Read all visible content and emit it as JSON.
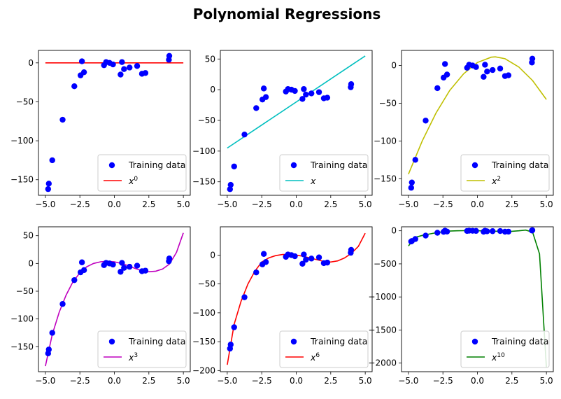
{
  "figure": {
    "title": "Polynomial Regressions"
  },
  "chart_data": [
    {
      "type": "scatter",
      "title": "",
      "xlabel": "",
      "ylabel": "",
      "xlim": [
        -5.5,
        5.5
      ],
      "ylim": [
        -170,
        16
      ],
      "xticks": [
        -5.0,
        -2.5,
        0.0,
        2.5,
        5.0
      ],
      "xtick_labels": [
        "−5.0",
        "−2.5",
        "0.0",
        "2.5",
        "5.0"
      ],
      "yticks": [
        -150,
        -100,
        -50,
        0
      ],
      "ytick_labels": [
        "−150",
        "−100",
        "−50",
        "0"
      ],
      "grid": false,
      "legend_position": "lower-right",
      "series": [
        {
          "name": "Training data",
          "kind": "scatter",
          "color": "#0000ff"
        },
        {
          "name": "x",
          "sup": "0",
          "kind": "line",
          "color": "#ff0000",
          "x": [
            -5,
            5
          ],
          "y": [
            0,
            0
          ]
        }
      ]
    },
    {
      "type": "scatter",
      "title": "",
      "xlabel": "",
      "ylabel": "",
      "xlim": [
        -5.5,
        5.5
      ],
      "ylim": [
        -172,
        64
      ],
      "xticks": [
        -5.0,
        -2.5,
        0.0,
        2.5,
        5.0
      ],
      "xtick_labels": [
        "−5.0",
        "−2.5",
        "0.0",
        "2.5",
        "5.0"
      ],
      "yticks": [
        -150,
        -100,
        -50,
        0,
        50
      ],
      "ytick_labels": [
        "−150",
        "−100",
        "−50",
        "0",
        "50"
      ],
      "grid": false,
      "legend_position": "lower-right",
      "series": [
        {
          "name": "Training data",
          "kind": "scatter",
          "color": "#0000ff"
        },
        {
          "name": "x",
          "sup": "",
          "kind": "line",
          "color": "#00bfbf",
          "x": [
            -5,
            5
          ],
          "y": [
            -95,
            55
          ]
        }
      ]
    },
    {
      "type": "scatter",
      "title": "",
      "xlabel": "",
      "ylabel": "",
      "xlim": [
        -5.5,
        5.5
      ],
      "ylim": [
        -172,
        20
      ],
      "xticks": [
        -5.0,
        -2.5,
        0.0,
        2.5,
        5.0
      ],
      "xtick_labels": [
        "−5.0",
        "−2.5",
        "0.0",
        "2.5",
        "5.0"
      ],
      "yticks": [
        -150,
        -100,
        -50,
        0
      ],
      "ytick_labels": [
        "−150",
        "−100",
        "−50",
        "0"
      ],
      "grid": false,
      "legend_position": "lower-right",
      "series": [
        {
          "name": "Training data",
          "kind": "scatter",
          "color": "#0000ff"
        },
        {
          "name": "x",
          "sup": "2",
          "kind": "line",
          "color": "#bfbf00",
          "x": [
            -5,
            -4,
            -3,
            -2,
            -1,
            0,
            1,
            1.3,
            2,
            3,
            4,
            5
          ],
          "y": [
            -144,
            -100,
            -63,
            -33,
            -11,
            4,
            11,
            11.5,
            9,
            -2,
            -20,
            -45
          ]
        }
      ]
    },
    {
      "type": "scatter",
      "title": "",
      "xlabel": "",
      "ylabel": "",
      "xlim": [
        -5.5,
        5.5
      ],
      "ylim": [
        -195,
        66
      ],
      "xticks": [
        -5.0,
        -2.5,
        0.0,
        2.5,
        5.0
      ],
      "xtick_labels": [
        "−5.0",
        "−2.5",
        "0.0",
        "2.5",
        "5.0"
      ],
      "yticks": [
        -150,
        -100,
        -50,
        0,
        50
      ],
      "ytick_labels": [
        "−150",
        "−100",
        "−50",
        "0",
        "50"
      ],
      "grid": false,
      "legend_position": "lower-right",
      "series": [
        {
          "name": "Training data",
          "kind": "scatter",
          "color": "#0000ff"
        },
        {
          "name": "x",
          "sup": "3",
          "kind": "line",
          "color": "#bf00bf",
          "x": [
            -5,
            -4.5,
            -4,
            -3.5,
            -3,
            -2.5,
            -2,
            -1.5,
            -1,
            -0.5,
            0,
            0.5,
            1,
            1.5,
            2,
            2.5,
            3,
            3.5,
            4,
            4.5,
            5
          ],
          "y": [
            -185,
            -128,
            -88,
            -57,
            -33,
            -17,
            -6,
            0,
            3,
            4,
            3,
            0,
            -4,
            -9,
            -13,
            -15,
            -14,
            -10,
            -1,
            20,
            55
          ]
        }
      ]
    },
    {
      "type": "scatter",
      "title": "",
      "xlabel": "",
      "ylabel": "",
      "xlim": [
        -5.5,
        5.5
      ],
      "ylim": [
        -202,
        49
      ],
      "xticks": [
        -5.0,
        -2.5,
        0.0,
        2.5,
        5.0
      ],
      "xtick_labels": [
        "−5.0",
        "−2.5",
        "0.0",
        "2.5",
        "5.0"
      ],
      "yticks": [
        -200,
        -150,
        -100,
        -50,
        0
      ],
      "ytick_labels": [
        "−200",
        "−150",
        "−100",
        "−50",
        "0"
      ],
      "yticks_right": [
        -200
      ],
      "grid": false,
      "legend_position": "lower-right",
      "series": [
        {
          "name": "Training data",
          "kind": "scatter",
          "color": "#0000ff"
        },
        {
          "name": "x",
          "sup": "6",
          "kind": "line",
          "color": "#ff0000",
          "x": [
            -5,
            -4.5,
            -4,
            -3.5,
            -3,
            -2.5,
            -2,
            -1.5,
            -1,
            -0.5,
            0,
            0.5,
            1,
            1.5,
            2,
            2.5,
            3,
            3.5,
            4,
            4.5,
            5
          ],
          "y": [
            -190,
            -120,
            -80,
            -50,
            -28,
            -12,
            -5,
            -1,
            1,
            1,
            0,
            -2,
            -5,
            -8,
            -11,
            -12,
            -10,
            -5,
            3,
            15,
            38
          ]
        }
      ]
    },
    {
      "type": "scatter",
      "title": "",
      "xlabel": "",
      "ylabel": "",
      "xlim": [
        -5.5,
        5.5
      ],
      "ylim": [
        -2130,
        60
      ],
      "xticks": [
        -5.0,
        -2.5,
        0.0,
        2.5,
        5.0
      ],
      "xtick_labels": [
        "−5.0",
        "−2.5",
        "0.0",
        "2.5",
        "5.0"
      ],
      "yticks": [
        -2000,
        -1500,
        -1000,
        -500,
        0
      ],
      "ytick_labels": [
        "−2000",
        "−1500",
        "−1000",
        "−500",
        "0"
      ],
      "grid": false,
      "legend_position": "lower-right",
      "series": [
        {
          "name": "Training data",
          "kind": "scatter",
          "color": "#0000ff"
        },
        {
          "name": "x",
          "sup": "10",
          "kind": "line",
          "color": "#008000",
          "x": [
            -5,
            -4.5,
            -4,
            -3.5,
            -3,
            -2.5,
            -2,
            -1.5,
            -1,
            -0.5,
            0,
            0.5,
            1,
            1.5,
            2,
            2.5,
            3,
            3.5,
            4,
            4.5,
            5
          ],
          "y": [
            -230,
            -100,
            -70,
            -50,
            -30,
            -15,
            -5,
            0,
            2,
            2,
            1,
            -2,
            -5,
            -8,
            -10,
            -8,
            0,
            10,
            -20,
            -350,
            -2060
          ]
        }
      ]
    }
  ],
  "training_data": {
    "x": [
      -4.8,
      -4.75,
      -4.5,
      -3.75,
      -2.9,
      -2.45,
      -2.35,
      -2.2,
      -0.75,
      -0.6,
      -0.35,
      -0.1,
      0.45,
      0.55,
      0.7,
      1.1,
      1.65,
      2.0,
      2.25,
      3.95,
      3.98
    ],
    "y": [
      -162,
      -155,
      -125,
      -73,
      -30,
      -16,
      2,
      -12,
      -3,
      1,
      0,
      -2,
      -15,
      1,
      -8,
      -6,
      -4,
      -14,
      -13,
      4,
      9
    ]
  }
}
